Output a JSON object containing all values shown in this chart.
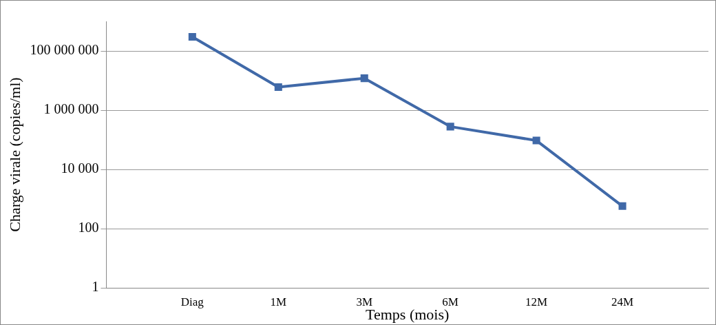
{
  "chart_data": {
    "type": "line",
    "xlabel": "Temps (mois)",
    "ylabel": "Charge virale (copies/ml)",
    "categories": [
      null,
      "Diag",
      "1M",
      "3M",
      "6M",
      "12M",
      "24M",
      null
    ],
    "series": [
      {
        "color": "#4069a8",
        "values": [
          null,
          300000000,
          6000000,
          12000000,
          280000,
          95000,
          580,
          null
        ]
      }
    ],
    "log": "y",
    "ylim": [
      1,
      1000000000
    ],
    "yticks": [
      {
        "value": 1,
        "label": "1"
      },
      {
        "value": 100,
        "label": "100"
      },
      {
        "value": 10000,
        "label": "10 000"
      },
      {
        "value": 1000000,
        "label": "1 000 000"
      },
      {
        "value": 100000000,
        "label": "100 000 000"
      }
    ],
    "grid": "y",
    "legend": false,
    "marker": "square",
    "line_style": "solid"
  }
}
